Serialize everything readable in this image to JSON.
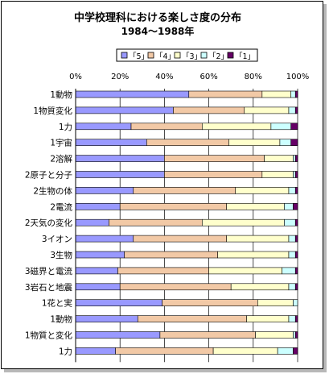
{
  "chart_data": {
    "type": "bar",
    "orientation": "horizontal",
    "stacked": "percent",
    "title": "中学校理科における楽しさ度の分布",
    "subtitle": "1984〜1988年",
    "x_ticks": [
      "0%",
      "20%",
      "40%",
      "60%",
      "80%",
      "100%"
    ],
    "xlim": [
      0,
      100
    ],
    "grid": true,
    "legend_position": "top",
    "categories": [
      "1動物",
      "1物質変化",
      "1力",
      "1宇宙",
      "2溶解",
      "2原子と分子",
      "2生物の体",
      "2電流",
      "2天気の変化",
      "3イオン",
      "3生物",
      "3磁界と電流",
      "3岩石と地震",
      "1花と実",
      "1動物",
      "1物質と変化",
      "1力"
    ],
    "series": [
      {
        "name": "「5」",
        "color": "#9999ff",
        "values": [
          51,
          44,
          25,
          32,
          40,
          40,
          26,
          20,
          15,
          26,
          22,
          19,
          20,
          39,
          28,
          38,
          18
        ]
      },
      {
        "name": "「4」",
        "color": "#f2c9a6",
        "values": [
          33,
          32,
          32,
          37,
          45,
          44,
          46,
          48,
          42,
          42,
          42,
          41,
          50,
          43,
          49,
          43,
          44
        ]
      },
      {
        "name": "「3」",
        "color": "#ffffcc",
        "values": [
          13,
          20,
          31,
          23,
          13,
          14,
          24,
          26,
          37,
          28,
          32,
          33,
          26,
          16,
          19,
          17,
          29
        ]
      },
      {
        "name": "「2」",
        "color": "#ccffff",
        "values": [
          2,
          3,
          9,
          5,
          1,
          1,
          3,
          4,
          5,
          3,
          3,
          6,
          3,
          2,
          3,
          1,
          7
        ]
      },
      {
        "name": "「1」",
        "color": "#660066",
        "values": [
          1,
          1,
          3,
          3,
          1,
          1,
          1,
          2,
          1,
          1,
          1,
          1,
          1,
          0,
          1,
          1,
          2
        ]
      }
    ]
  }
}
